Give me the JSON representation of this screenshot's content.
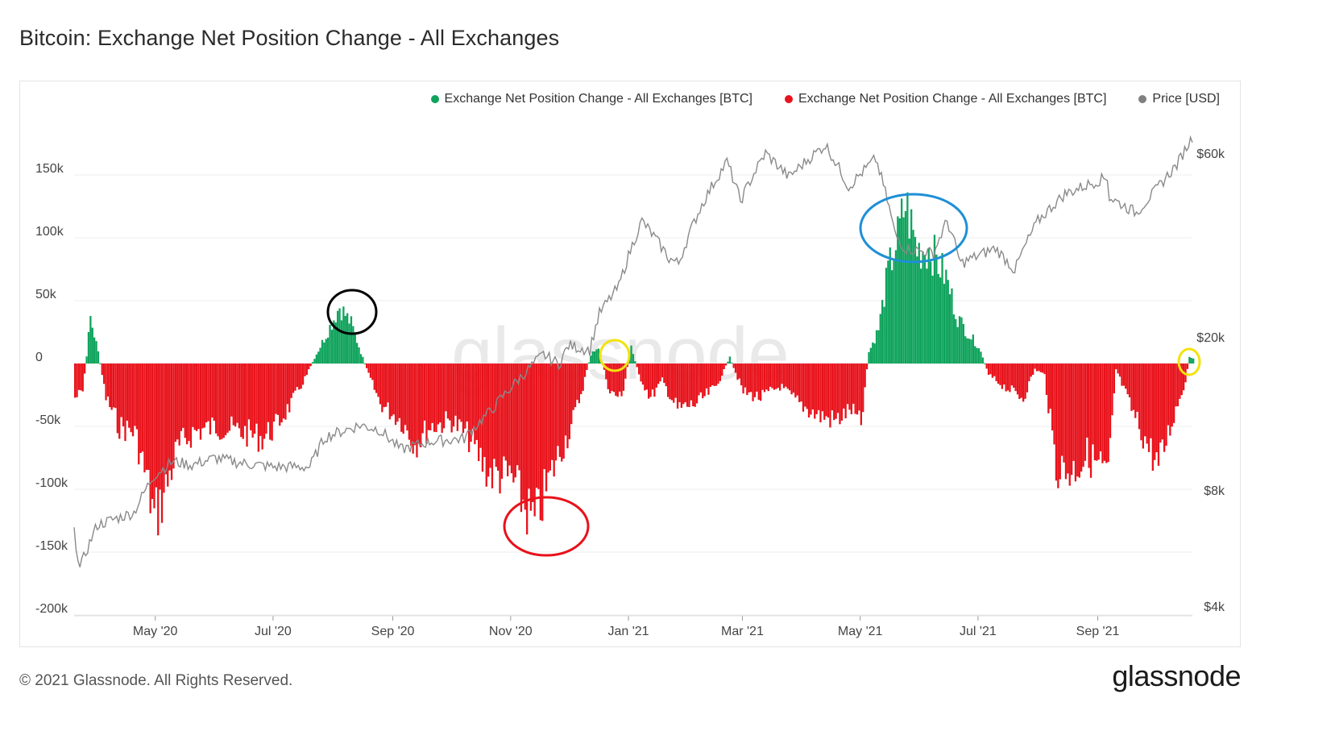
{
  "title": "Bitcoin: Exchange Net Position Change - All Exchanges",
  "footer": {
    "copyright": "© 2021 Glassnode. All Rights Reserved.",
    "logo": "glassnode"
  },
  "watermark": "glassnode",
  "legend": [
    {
      "label": "Exchange Net Position Change - All Exchanges [BTC]",
      "color": "#0fa35c"
    },
    {
      "label": "Exchange Net Position Change - All Exchanges [BTC]",
      "color": "#e8121b"
    },
    {
      "label": "Price [USD]",
      "color": "#808080"
    }
  ],
  "colors": {
    "positive": "#0fa35c",
    "negative": "#e8121b",
    "price": "#8a8a8a",
    "grid": "#ececec"
  },
  "chart_data": {
    "type": "bar",
    "x_tick_labels": [
      "May '20",
      "Jul '20",
      "Sep '20",
      "Nov '20",
      "Jan '21",
      "Mar '21",
      "May '21",
      "Jul '21",
      "Sep '21"
    ],
    "left_axis": {
      "ticks": [
        "150k",
        "100k",
        "50k",
        "0",
        "-50k",
        "-100k",
        "-150k",
        "-200k"
      ],
      "ylim": [
        -200000,
        150000
      ]
    },
    "right_axis": {
      "ticks": [
        "$60k",
        "$20k",
        "$8k",
        "$4k"
      ],
      "scale": "log"
    },
    "xrange": [
      "2020-03-20",
      "2021-10-20"
    ],
    "net_position_series": {
      "name": "Exchange Net Position Change - All Exchanges [BTC]",
      "unit": "BTC",
      "keypoints": [
        [
          "2020-03-20",
          -30000
        ],
        [
          "2020-03-24",
          -25000
        ],
        [
          "2020-03-28",
          40000
        ],
        [
          "2020-04-01",
          10000
        ],
        [
          "2020-04-05",
          -30000
        ],
        [
          "2020-04-12",
          -55000
        ],
        [
          "2020-04-20",
          -60000
        ],
        [
          "2020-04-26",
          -100000
        ],
        [
          "2020-04-30",
          -135000
        ],
        [
          "2020-05-04",
          -120000
        ],
        [
          "2020-05-12",
          -75000
        ],
        [
          "2020-05-20",
          -60000
        ],
        [
          "2020-06-01",
          -55000
        ],
        [
          "2020-06-15",
          -60000
        ],
        [
          "2020-06-25",
          -65000
        ],
        [
          "2020-07-02",
          -55000
        ],
        [
          "2020-07-10",
          -35000
        ],
        [
          "2020-07-18",
          -10000
        ],
        [
          "2020-07-22",
          5000
        ],
        [
          "2020-07-28",
          25000
        ],
        [
          "2020-08-04",
          50000
        ],
        [
          "2020-08-10",
          35000
        ],
        [
          "2020-08-14",
          15000
        ],
        [
          "2020-08-18",
          -5000
        ],
        [
          "2020-08-25",
          -35000
        ],
        [
          "2020-09-05",
          -50000
        ],
        [
          "2020-09-12",
          -70000
        ],
        [
          "2020-09-20",
          -55000
        ],
        [
          "2020-10-01",
          -50000
        ],
        [
          "2020-10-10",
          -65000
        ],
        [
          "2020-10-20",
          -95000
        ],
        [
          "2020-11-01",
          -100000
        ],
        [
          "2020-11-08",
          -125000
        ],
        [
          "2020-11-13",
          -140000
        ],
        [
          "2020-11-18",
          -115000
        ],
        [
          "2020-11-24",
          -85000
        ],
        [
          "2020-12-02",
          -55000
        ],
        [
          "2020-12-08",
          -20000
        ],
        [
          "2020-12-12",
          8000
        ],
        [
          "2020-12-16",
          12000
        ],
        [
          "2020-12-22",
          -25000
        ],
        [
          "2020-12-28",
          -30000
        ],
        [
          "2021-01-02",
          15000
        ],
        [
          "2021-01-06",
          -10000
        ],
        [
          "2021-01-12",
          -30000
        ],
        [
          "2021-01-18",
          -15000
        ],
        [
          "2021-01-26",
          -40000
        ],
        [
          "2021-02-05",
          -35000
        ],
        [
          "2021-02-15",
          -20000
        ],
        [
          "2021-02-22",
          5000
        ],
        [
          "2021-03-01",
          -25000
        ],
        [
          "2021-03-10",
          -30000
        ],
        [
          "2021-03-20",
          -20000
        ],
        [
          "2021-03-30",
          -35000
        ],
        [
          "2021-04-08",
          -45000
        ],
        [
          "2021-04-18",
          -50000
        ],
        [
          "2021-04-26",
          -40000
        ],
        [
          "2021-05-01",
          -55000
        ],
        [
          "2021-05-05",
          10000
        ],
        [
          "2021-05-10",
          30000
        ],
        [
          "2021-05-15",
          80000
        ],
        [
          "2021-05-20",
          110000
        ],
        [
          "2021-05-24",
          140000
        ],
        [
          "2021-05-30",
          100000
        ],
        [
          "2021-06-06",
          100000
        ],
        [
          "2021-06-14",
          75000
        ],
        [
          "2021-06-20",
          40000
        ],
        [
          "2021-06-26",
          25000
        ],
        [
          "2021-07-01",
          15000
        ],
        [
          "2021-07-06",
          -10000
        ],
        [
          "2021-07-14",
          -20000
        ],
        [
          "2021-07-24",
          -30000
        ],
        [
          "2021-07-30",
          -5000
        ],
        [
          "2021-08-04",
          -10000
        ],
        [
          "2021-08-10",
          -90000
        ],
        [
          "2021-08-18",
          -95000
        ],
        [
          "2021-08-26",
          -80000
        ],
        [
          "2021-09-02",
          -90000
        ],
        [
          "2021-09-06",
          -100000
        ],
        [
          "2021-09-10",
          -5000
        ],
        [
          "2021-09-18",
          -40000
        ],
        [
          "2021-09-26",
          -70000
        ],
        [
          "2021-10-02",
          -90000
        ],
        [
          "2021-10-10",
          -45000
        ],
        [
          "2021-10-16",
          -15000
        ],
        [
          "2021-10-18",
          5000
        ],
        [
          "2021-10-20",
          4000
        ]
      ]
    },
    "price_series": {
      "name": "Price [USD]",
      "unit": "USD",
      "keypoints": [
        [
          "2020-03-20",
          6200
        ],
        [
          "2020-03-23",
          5000
        ],
        [
          "2020-04-01",
          6500
        ],
        [
          "2020-04-20",
          7000
        ],
        [
          "2020-04-30",
          8700
        ],
        [
          "2020-05-10",
          9500
        ],
        [
          "2020-05-20",
          9300
        ],
        [
          "2020-06-01",
          9700
        ],
        [
          "2020-06-15",
          9400
        ],
        [
          "2020-07-01",
          9200
        ],
        [
          "2020-07-20",
          9200
        ],
        [
          "2020-07-28",
          11000
        ],
        [
          "2020-08-15",
          11800
        ],
        [
          "2020-08-25",
          11500
        ],
        [
          "2020-09-05",
          10200
        ],
        [
          "2020-09-20",
          10700
        ],
        [
          "2020-10-08",
          10900
        ],
        [
          "2020-10-22",
          12900
        ],
        [
          "2020-11-05",
          15500
        ],
        [
          "2020-11-18",
          18000
        ],
        [
          "2020-11-26",
          17000
        ],
        [
          "2020-12-01",
          19000
        ],
        [
          "2020-12-12",
          18500
        ],
        [
          "2020-12-17",
          23000
        ],
        [
          "2020-12-27",
          27000
        ],
        [
          "2021-01-08",
          40000
        ],
        [
          "2021-01-22",
          32000
        ],
        [
          "2021-01-27",
          31000
        ],
        [
          "2021-02-08",
          44000
        ],
        [
          "2021-02-21",
          57000
        ],
        [
          "2021-02-28",
          45000
        ],
        [
          "2021-03-13",
          60000
        ],
        [
          "2021-03-25",
          52000
        ],
        [
          "2021-04-13",
          63000
        ],
        [
          "2021-04-25",
          49000
        ],
        [
          "2021-05-09",
          58000
        ],
        [
          "2021-05-19",
          37000
        ],
        [
          "2021-05-24",
          34000
        ],
        [
          "2021-06-08",
          33000
        ],
        [
          "2021-06-15",
          40000
        ],
        [
          "2021-06-22",
          31000
        ],
        [
          "2021-07-10",
          34000
        ],
        [
          "2021-07-20",
          29800
        ],
        [
          "2021-08-01",
          40000
        ],
        [
          "2021-08-15",
          47000
        ],
        [
          "2021-09-06",
          52000
        ],
        [
          "2021-09-07",
          46000
        ],
        [
          "2021-09-21",
          42000
        ],
        [
          "2021-10-01",
          48000
        ],
        [
          "2021-10-12",
          56000
        ],
        [
          "2021-10-20",
          66000
        ]
      ]
    },
    "annotations": [
      {
        "shape": "ellipse",
        "color": "#000000",
        "at": "Aug '20 peak"
      },
      {
        "shape": "ellipse",
        "color": "#e8121b",
        "at": "Nov '20 trough"
      },
      {
        "shape": "ellipse",
        "color": "#f2e20d",
        "at": "Dec '20 small inflow"
      },
      {
        "shape": "ellipse",
        "color": "#1e8fd6",
        "at": "May '21 peak"
      },
      {
        "shape": "ellipse",
        "color": "#f2e20d",
        "at": "Oct '21 small inflow"
      }
    ]
  }
}
